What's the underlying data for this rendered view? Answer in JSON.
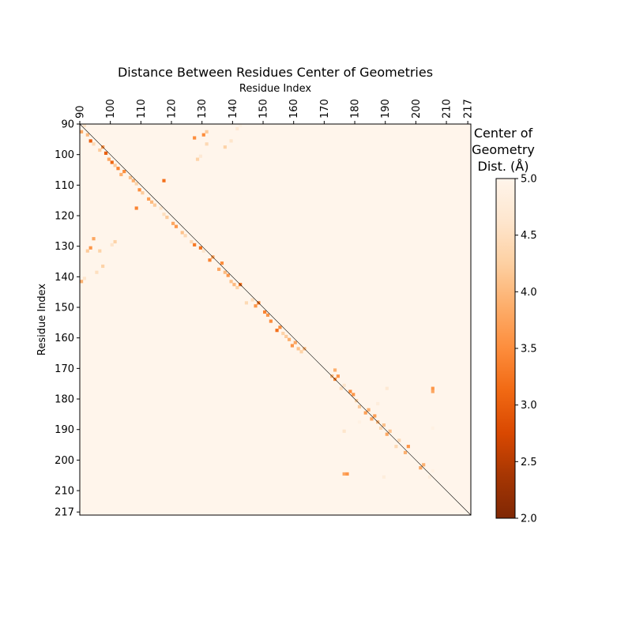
{
  "chart_data": {
    "type": "heatmap",
    "title": "Distance Between Residues Center of Geometries",
    "xlabel": "Residue Index",
    "ylabel": "Residue Index",
    "x_ticks": [
      90,
      100,
      110,
      120,
      130,
      140,
      150,
      160,
      170,
      180,
      190,
      200,
      210,
      217
    ],
    "y_ticks": [
      90,
      100,
      110,
      120,
      130,
      140,
      150,
      160,
      170,
      180,
      190,
      200,
      210,
      217
    ],
    "xlim": [
      90,
      217
    ],
    "ylim": [
      90,
      217
    ],
    "colorbar": {
      "label_lines": [
        "Center of",
        "Geometry",
        "Dist. (Å)"
      ],
      "range": [
        2.0,
        5.0
      ],
      "ticks": [
        "2.0",
        "2.5",
        "3.0",
        "3.5",
        "4.0",
        "4.5",
        "5.0"
      ],
      "colormap": [
        "#7f2704",
        "#a63603",
        "#d94801",
        "#f16913",
        "#fd8d3c",
        "#fdae6b",
        "#fdd0a2",
        "#fee6ce",
        "#fff5eb"
      ]
    },
    "diagonal_line": true,
    "cells": [
      [
        90,
        92,
        3.8
      ],
      [
        91,
        90,
        4.6
      ],
      [
        92,
        93,
        4.0
      ],
      [
        93,
        95,
        3.0
      ],
      [
        94,
        96,
        4.4
      ],
      [
        96,
        98,
        4.2
      ],
      [
        97,
        97,
        3.6
      ],
      [
        98,
        99,
        3.0
      ],
      [
        99,
        101,
        3.8
      ],
      [
        100,
        102,
        3.1
      ],
      [
        101,
        103,
        4.2
      ],
      [
        102,
        104,
        3.4
      ],
      [
        103,
        106,
        3.9
      ],
      [
        104,
        105,
        3.5
      ],
      [
        106,
        107,
        4.1
      ],
      [
        107,
        108,
        3.9
      ],
      [
        108,
        109,
        4.3
      ],
      [
        109,
        111,
        3.5
      ],
      [
        110,
        112,
        4.2
      ],
      [
        112,
        114,
        3.7
      ],
      [
        113,
        115,
        4.0
      ],
      [
        114,
        116,
        4.2
      ],
      [
        116,
        117,
        4.6
      ],
      [
        117,
        119,
        4.5
      ],
      [
        118,
        120,
        4.2
      ],
      [
        120,
        122,
        3.8
      ],
      [
        121,
        123,
        3.6
      ],
      [
        123,
        125,
        4.1
      ],
      [
        124,
        126,
        4.4
      ],
      [
        126,
        128,
        4.4
      ],
      [
        127,
        129,
        3.3
      ],
      [
        129,
        130,
        3.2
      ],
      [
        130,
        131,
        4.6
      ],
      [
        132,
        134,
        3.4
      ],
      [
        133,
        133,
        3.7
      ],
      [
        135,
        137,
        3.8
      ],
      [
        136,
        135,
        3.5
      ],
      [
        137,
        138,
        4.0
      ],
      [
        138,
        139,
        3.6
      ],
      [
        139,
        141,
        4.1
      ],
      [
        140,
        142,
        4.0
      ],
      [
        141,
        143,
        4.3
      ],
      [
        142,
        142,
        3.2
      ],
      [
        144,
        148,
        4.4
      ],
      [
        146,
        147,
        4.5
      ],
      [
        147,
        149,
        3.6
      ],
      [
        148,
        148,
        3.3
      ],
      [
        150,
        151,
        3.4
      ],
      [
        151,
        152,
        3.6
      ],
      [
        152,
        154,
        3.5
      ],
      [
        154,
        157,
        3.2
      ],
      [
        155,
        156,
        3.5
      ],
      [
        156,
        158,
        4.3
      ],
      [
        157,
        159,
        4.2
      ],
      [
        158,
        160,
        3.9
      ],
      [
        159,
        162,
        3.6
      ],
      [
        160,
        161,
        3.8
      ],
      [
        161,
        163,
        4.1
      ],
      [
        162,
        164,
        4.3
      ],
      [
        163,
        163,
        4.0
      ],
      [
        172,
        172,
        4.0
      ],
      [
        173,
        170,
        3.9
      ],
      [
        173,
        173,
        3.5
      ],
      [
        174,
        172,
        3.6
      ],
      [
        175,
        176,
        4.5
      ],
      [
        176,
        175,
        4.6
      ],
      [
        178,
        177,
        3.5
      ],
      [
        179,
        178,
        3.6
      ],
      [
        180,
        180,
        4.3
      ],
      [
        181,
        182,
        4.2
      ],
      [
        183,
        184,
        3.7
      ],
      [
        184,
        183,
        3.9
      ],
      [
        185,
        186,
        3.8
      ],
      [
        186,
        185,
        3.7
      ],
      [
        187,
        187,
        4.0
      ],
      [
        188,
        189,
        4.4
      ],
      [
        189,
        188,
        4.1
      ],
      [
        190,
        191,
        3.8
      ],
      [
        191,
        190,
        4.1
      ],
      [
        193,
        195,
        4.4
      ],
      [
        194,
        193,
        4.4
      ],
      [
        196,
        197,
        3.9
      ],
      [
        197,
        195,
        3.6
      ],
      [
        201,
        202,
        3.8
      ],
      [
        202,
        201,
        3.9
      ],
      [
        204,
        205,
        4.8
      ],
      [
        205,
        203,
        4.9
      ],
      [
        127,
        94,
        3.5
      ],
      [
        130,
        93,
        3.5
      ],
      [
        131,
        92,
        4.2
      ],
      [
        131,
        96,
        4.4
      ],
      [
        128,
        101,
        4.3
      ],
      [
        129,
        100,
        4.7
      ],
      [
        137,
        97,
        4.3
      ],
      [
        139,
        95,
        4.6
      ],
      [
        141,
        91,
        4.7
      ],
      [
        142,
        90,
        4.9
      ],
      [
        117,
        108,
        3.2
      ],
      [
        108,
        117,
        3.4
      ],
      [
        94,
        127,
        3.8
      ],
      [
        93,
        130,
        3.6
      ],
      [
        92,
        131,
        4.2
      ],
      [
        96,
        131,
        4.3
      ],
      [
        101,
        128,
        4.3
      ],
      [
        100,
        129,
        4.6
      ],
      [
        97,
        136,
        4.3
      ],
      [
        95,
        138,
        4.5
      ],
      [
        91,
        140,
        4.6
      ],
      [
        90,
        141,
        3.9
      ],
      [
        190,
        176,
        4.7
      ],
      [
        176,
        190,
        4.6
      ],
      [
        205,
        176,
        3.6
      ],
      [
        205,
        177,
        3.8
      ],
      [
        176,
        204,
        3.8
      ],
      [
        177,
        204,
        3.6
      ],
      [
        189,
        205,
        4.8
      ],
      [
        205,
        189,
        4.9
      ],
      [
        181,
        187,
        4.9
      ],
      [
        187,
        181,
        4.8
      ]
    ]
  }
}
